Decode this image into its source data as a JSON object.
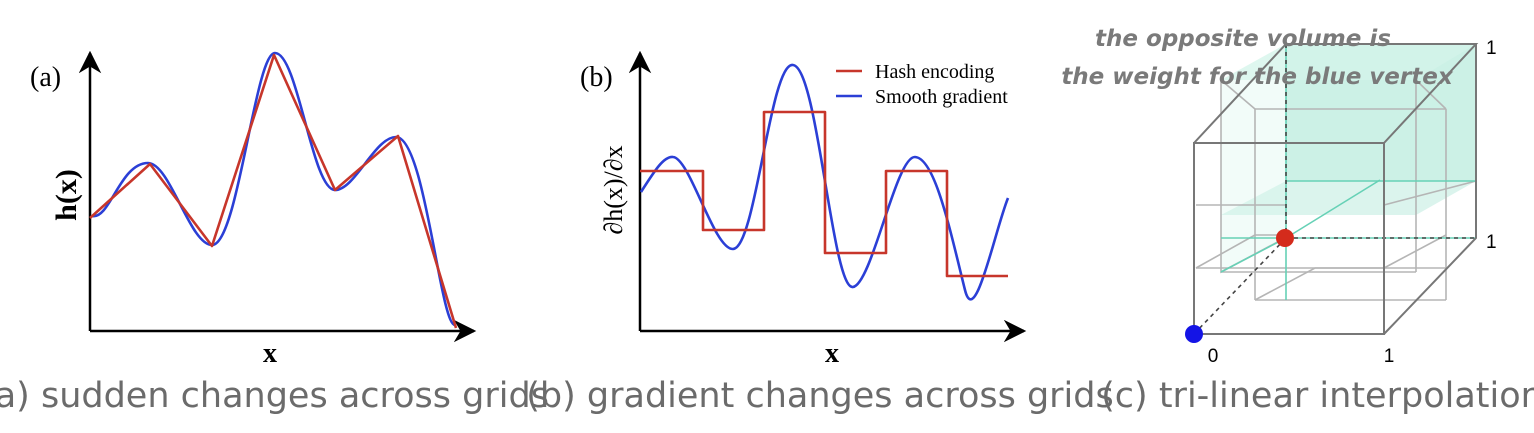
{
  "panel_a": {
    "tag": "(a)",
    "ylabel": "h(x)",
    "xlabel": "x",
    "caption": "(a) sudden changes across grids",
    "colors": {
      "hash": "#c7362b",
      "smooth": "#2b3fd6"
    }
  },
  "panel_b": {
    "tag": "(b)",
    "ylabel": "∂h(x)/∂x",
    "xlabel": "x",
    "caption": "(b) gradient changes across grids",
    "legend": [
      "Hash encoding",
      "Smooth gradient"
    ],
    "colors": {
      "hash": "#c7362b",
      "smooth": "#2b3fd6"
    }
  },
  "panel_c": {
    "note_line1": "the opposite volume is",
    "note_line2": "the weight for the blue vertex",
    "tick_origin": "0",
    "tick_x": "1",
    "tick_y": "1",
    "tick_z": "1",
    "caption": "(c) tri-linear interpolation",
    "colors": {
      "volume": "#c3eee2",
      "vertex": "#1414e6",
      "point": "#d42b1c",
      "edge": "#66d1b6"
    }
  }
}
